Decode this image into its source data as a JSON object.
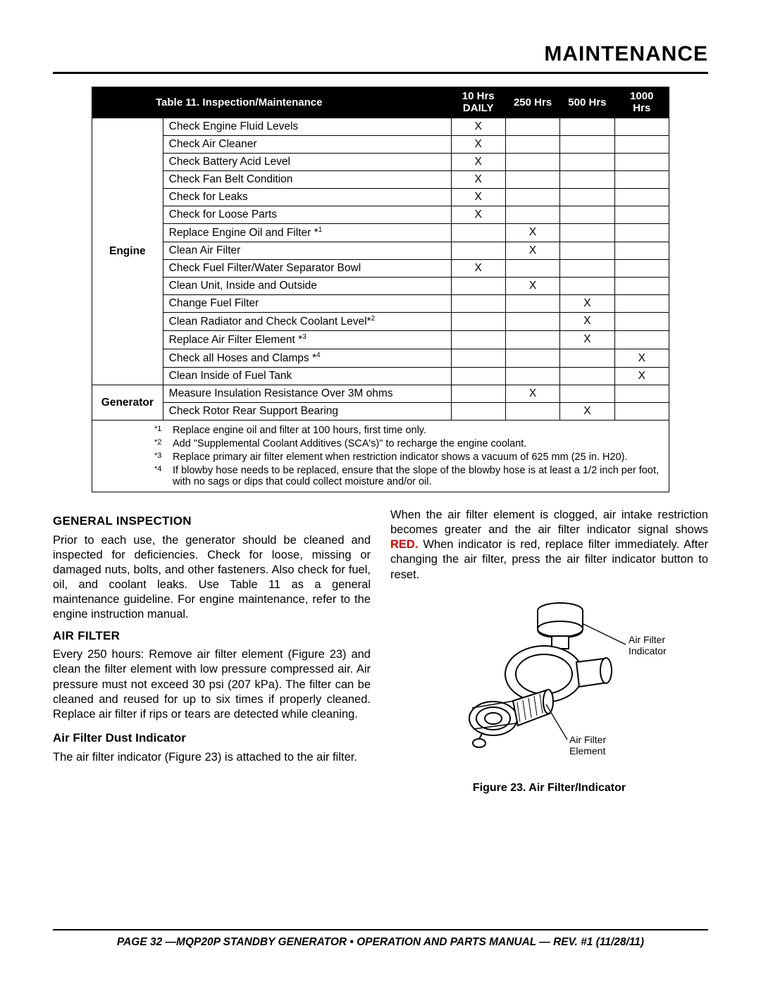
{
  "page_title": "MAINTENANCE",
  "table": {
    "title": "Table 11. Inspection/Maintenance",
    "headers": [
      "10 Hrs\nDAILY",
      "250 Hrs",
      "500 Hrs",
      "1000\nHrs"
    ],
    "categories": [
      {
        "name": "Engine",
        "rows": [
          {
            "task": "Check Engine Fluid Levels",
            "marks": [
              "X",
              "",
              "",
              ""
            ]
          },
          {
            "task": "Check Air Cleaner",
            "marks": [
              "X",
              "",
              "",
              ""
            ]
          },
          {
            "task": "Check Battery Acid Level",
            "marks": [
              "X",
              "",
              "",
              ""
            ]
          },
          {
            "task": "Check Fan Belt Condition",
            "marks": [
              "X",
              "",
              "",
              ""
            ]
          },
          {
            "task": "Check for Leaks",
            "marks": [
              "X",
              "",
              "",
              ""
            ]
          },
          {
            "task": "Check for Loose Parts",
            "marks": [
              "X",
              "",
              "",
              ""
            ]
          },
          {
            "task": "Replace Engine Oil and Filter *",
            "sup": "1",
            "marks": [
              "",
              "X",
              "",
              ""
            ]
          },
          {
            "task": "Clean Air Filter",
            "marks": [
              "",
              "X",
              "",
              ""
            ]
          },
          {
            "task": "Check Fuel Filter/Water Separator Bowl",
            "marks": [
              "X",
              "",
              "",
              ""
            ]
          },
          {
            "task": "Clean Unit, Inside and Outside",
            "marks": [
              "",
              "X",
              "",
              ""
            ]
          },
          {
            "task": "Change Fuel Filter",
            "marks": [
              "",
              "",
              "X",
              ""
            ]
          },
          {
            "task": "Clean Radiator and Check Coolant Level*",
            "sup": "2",
            "marks": [
              "",
              "",
              "X",
              ""
            ]
          },
          {
            "task": "Replace Air Filter Element *",
            "sup": "3",
            "marks": [
              "",
              "",
              "X",
              ""
            ]
          },
          {
            "task": "Check all Hoses and Clamps *",
            "sup": "4",
            "marks": [
              "",
              "",
              "",
              "X"
            ]
          },
          {
            "task": "Clean Inside of Fuel Tank",
            "marks": [
              "",
              "",
              "",
              "X"
            ]
          }
        ]
      },
      {
        "name": "Generator",
        "rows": [
          {
            "task": "Measure Insulation Resistance Over 3M ohms",
            "marks": [
              "",
              "X",
              "",
              ""
            ]
          },
          {
            "task": "Check Rotor Rear Support Bearing",
            "marks": [
              "",
              "",
              "X",
              ""
            ]
          }
        ]
      }
    ],
    "footnotes": [
      {
        "num": "1",
        "text": "Replace engine oil and filter at 100 hours, first time only."
      },
      {
        "num": "2",
        "text": "Add \"Supplemental Coolant Additives (SCA's)\" to recharge the engine coolant."
      },
      {
        "num": "3",
        "text": "Replace primary air filter element when restriction indicator shows a vacuum of 625 mm (25 in. H20)."
      },
      {
        "num": "4",
        "text": "If blowby hose needs to be replaced, ensure that the slope of the blowby hose is at least a 1/2 inch per foot, with no sags or dips that could collect moisture and/or oil."
      }
    ]
  },
  "left_col": {
    "h1": "GENERAL INSPECTION",
    "p1": "Prior to each use, the generator should be cleaned and inspected for deficiencies. Check for loose, missing or damaged nuts, bolts, and other fasteners. Also check for fuel, oil, and coolant leaks. Use Table 11 as a general maintenance guideline. For engine maintenance, refer to the engine instruction manual.",
    "h2": "AIR FILTER",
    "p2": "Every 250 hours: Remove air filter element (Figure 23) and clean the filter element with low pressure compressed air. Air pressure must not exceed 30 psi (207 kPa). The filter can be cleaned and reused for up to six times if properly cleaned. Replace air filter if rips or tears are detected while cleaning.",
    "h3": "Air Filter Dust Indicator",
    "p3": "The air filter indicator (Figure 23) is attached to the air filter."
  },
  "right_col": {
    "p1_a": "When the air filter element is clogged, air intake restriction becomes greater and the air filter indicator signal shows ",
    "p1_red": "RED.",
    "p1_b": " When indicator is red, replace filter immediately. After changing the air filter, press the air filter indicator button to reset.",
    "fig_label_1": "Air Filter\nIndicator",
    "fig_label_2": "Air Filter\nElement",
    "caption": "Figure 23. Air Filter/Indicator"
  },
  "footer": "PAGE 32 —MQP20P STANDBY GENERATOR • OPERATION AND PARTS MANUAL — REV. #1 (11/28/11)"
}
